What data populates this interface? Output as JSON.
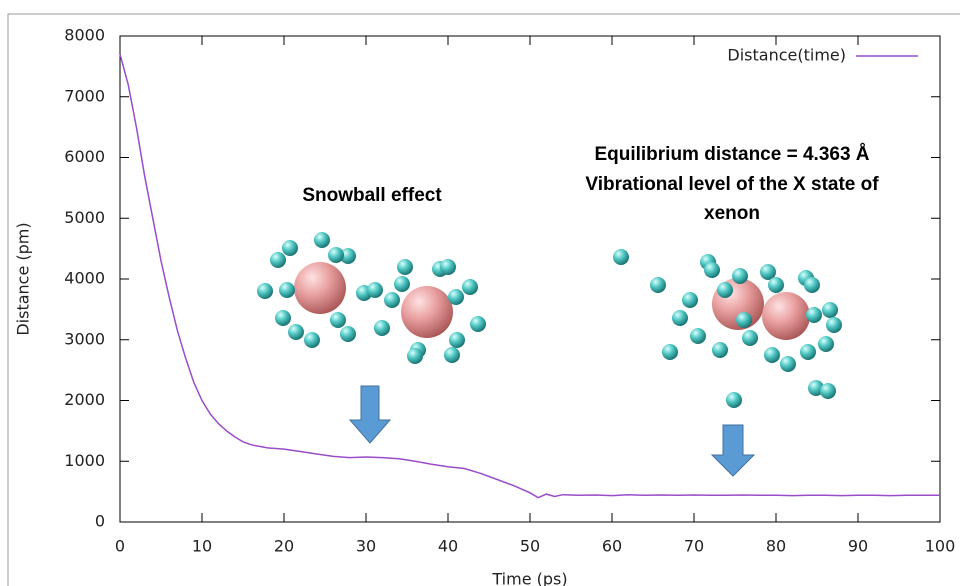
{
  "chart_data": {
    "type": "line",
    "xlabel": "Time (ps)",
    "ylabel": "Distance (pm)",
    "annotations": [
      "Snowball effect",
      "Equilibrium distance = 4.363 Å",
      "Vibrational level of the X state of",
      "xenon"
    ],
    "x": [
      0,
      1,
      2,
      3,
      4,
      5,
      6,
      7,
      8,
      9,
      10,
      11,
      12,
      13,
      14,
      15,
      16,
      18,
      20,
      22,
      24,
      26,
      28,
      30,
      32,
      34,
      36,
      38,
      40,
      42,
      44,
      46,
      48,
      50,
      51,
      52,
      53,
      54,
      56,
      58,
      60,
      62,
      64,
      66,
      68,
      70,
      72,
      74,
      76,
      78,
      80,
      82,
      84,
      86,
      88,
      90,
      92,
      94,
      96,
      98,
      100
    ],
    "series": [
      {
        "name": "Distance(time)",
        "color": "#9a4dc8",
        "values": [
          7700,
          7200,
          6500,
          5700,
          5000,
          4300,
          3700,
          3150,
          2700,
          2300,
          2000,
          1780,
          1620,
          1500,
          1400,
          1320,
          1270,
          1220,
          1200,
          1160,
          1120,
          1080,
          1060,
          1070,
          1060,
          1040,
          1000,
          950,
          910,
          880,
          800,
          700,
          600,
          480,
          400,
          460,
          420,
          450,
          440,
          445,
          435,
          450,
          440,
          445,
          440,
          445,
          440,
          440,
          445,
          440,
          440,
          435,
          440,
          440,
          435,
          440,
          440,
          435,
          440,
          440,
          440
        ]
      }
    ],
    "xlim": [
      0,
      100
    ],
    "xticks": [
      0,
      10,
      20,
      30,
      40,
      50,
      60,
      70,
      80,
      90,
      100
    ],
    "ylim": [
      0,
      8000
    ],
    "yticks": [
      0,
      1000,
      2000,
      3000,
      4000,
      5000,
      6000,
      7000,
      8000
    ],
    "legend": "top-right"
  }
}
